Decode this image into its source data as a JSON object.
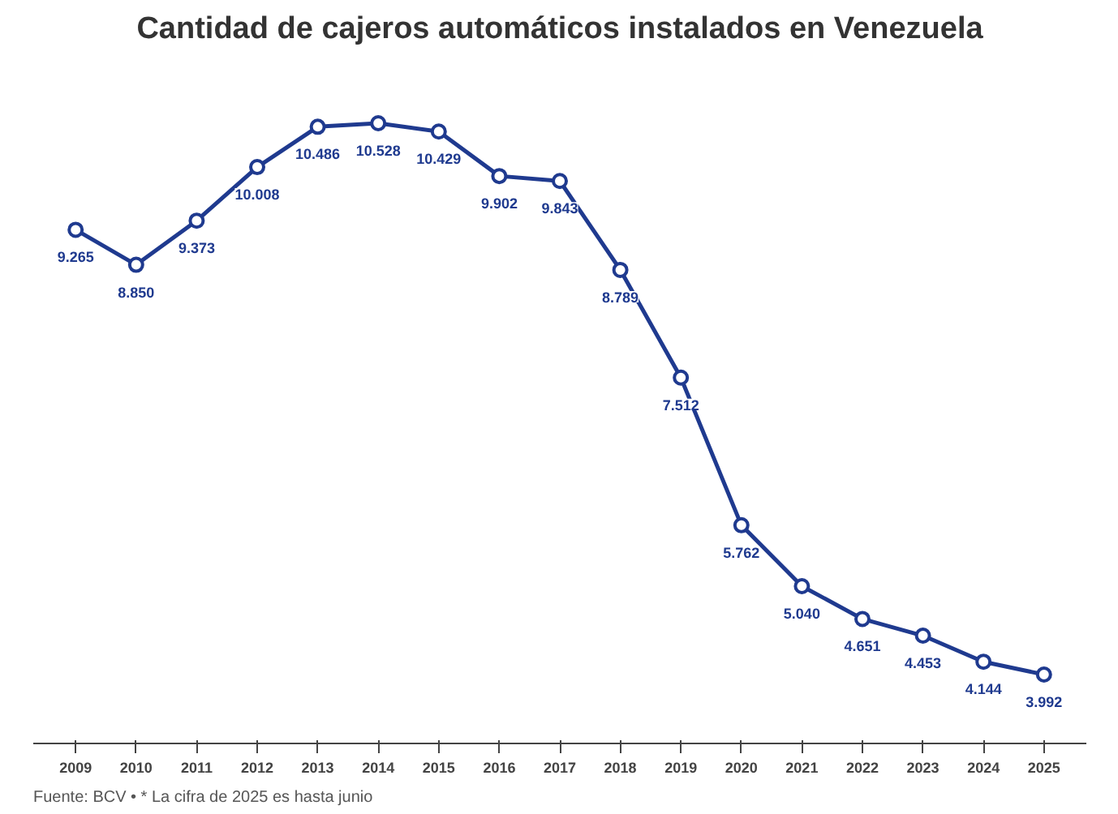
{
  "chart_data": {
    "type": "line",
    "title": "Cantidad de cajeros automáticos instalados en Venezuela",
    "categories": [
      "2009",
      "2010",
      "2011",
      "2012",
      "2013",
      "2014",
      "2015",
      "2016",
      "2017",
      "2018",
      "2019",
      "2020",
      "2021",
      "2022",
      "2023",
      "2024",
      "2025"
    ],
    "series": [
      {
        "color": "#1f3a8f",
        "values": [
          9265,
          8850,
          9373,
          10008,
          10486,
          10528,
          10429,
          9902,
          9843,
          8789,
          7512,
          5762,
          5040,
          4651,
          4453,
          4144,
          3992
        ],
        "value_labels": [
          "9.265",
          "8.850",
          "9.373",
          "10.008",
          "10.486",
          "10.528",
          "10.429",
          "9.902",
          "9.843",
          "8.789",
          "7.512",
          "5.762",
          "5.040",
          "4.651",
          "4.453",
          "4.144",
          "3.992"
        ]
      }
    ],
    "tick_labels": "x",
    "marker": "circle",
    "line_style": "solid",
    "annotations": [
      "Fuente: BCV • * La cifra de 2025 es hasta junio"
    ]
  }
}
